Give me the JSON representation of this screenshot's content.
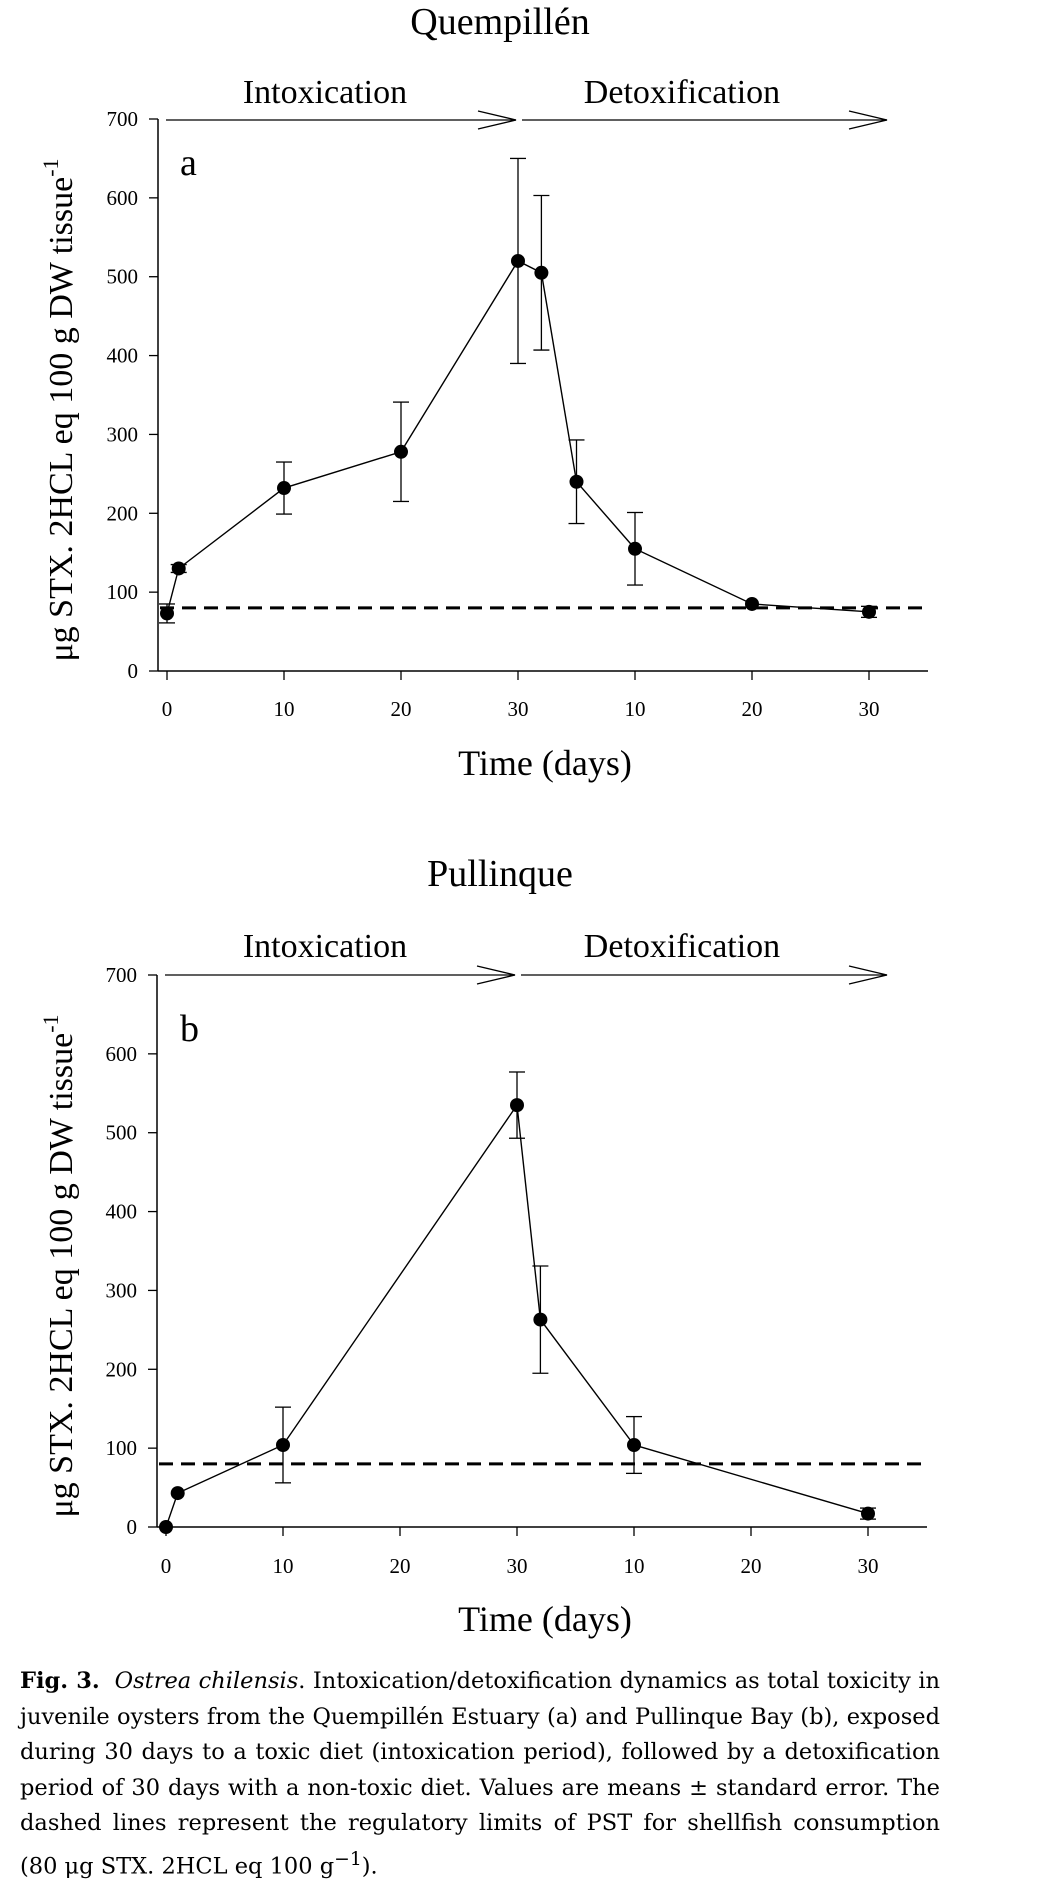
{
  "chart_data": [
    {
      "type": "line",
      "title": "Quempillén",
      "panel_label": "a",
      "phase_labels": [
        "Intoxication",
        "Detoxification"
      ],
      "xlabel": "Time (days)",
      "ylabel": "μg STX. 2HCL eq 100 g DW tissue",
      "ylabel_sup": "-1",
      "x_tick_labels": [
        "0",
        "10",
        "20",
        "30",
        "10",
        "20",
        "30"
      ],
      "y_ticks": [
        0,
        100,
        200,
        300,
        400,
        500,
        600,
        700
      ],
      "ylim": [
        0,
        700
      ],
      "threshold": 80,
      "grid": false,
      "points": [
        {
          "x": 0,
          "y": 73,
          "err": 12
        },
        {
          "x": 1,
          "y": 130,
          "err": 5
        },
        {
          "x": 10,
          "y": 232,
          "err": 33
        },
        {
          "x": 20,
          "y": 278,
          "err": 63
        },
        {
          "x": 30,
          "y": 520,
          "err": 130
        },
        {
          "x": 32,
          "y": 505,
          "err": 98
        },
        {
          "x": 35,
          "y": 240,
          "err": 53
        },
        {
          "x": 40,
          "y": 155,
          "err": 46
        },
        {
          "x": 50,
          "y": 85,
          "err": 0
        },
        {
          "x": 60,
          "y": 75,
          "err": 7
        }
      ]
    },
    {
      "type": "line",
      "title": "Pullinque",
      "panel_label": "b",
      "phase_labels": [
        "Intoxication",
        "Detoxification"
      ],
      "xlabel": "Time (days)",
      "ylabel": "μg STX. 2HCL eq 100 g DW tissue",
      "ylabel_sup": "-1",
      "x_tick_labels": [
        "0",
        "10",
        "20",
        "30",
        "10",
        "20",
        "30"
      ],
      "y_ticks": [
        0,
        100,
        200,
        300,
        400,
        500,
        600,
        700
      ],
      "ylim": [
        0,
        700
      ],
      "threshold": 80,
      "grid": false,
      "points": [
        {
          "x": 0,
          "y": 0,
          "err": 0
        },
        {
          "x": 1,
          "y": 43,
          "err": 0
        },
        {
          "x": 10,
          "y": 104,
          "err": 48
        },
        {
          "x": 30,
          "y": 535,
          "err": 42
        },
        {
          "x": 32,
          "y": 263,
          "err": 68
        },
        {
          "x": 40,
          "y": 104,
          "err": 36
        },
        {
          "x": 60,
          "y": 17,
          "err": 7
        }
      ]
    }
  ],
  "caption": {
    "fig_label": "Fig. 3.",
    "species": "Ostrea chilensis",
    "text": ". Intoxication/detoxification dynamics as total toxicity in juvenile oysters from the Quempillén Estuary (a) and Pullinque Bay (b), exposed during 30 days to a toxic diet (intoxication period), followed by a detoxification period of 30 days with a non-toxic diet. Values are means ± standard error. The dashed lines represent the regulatory limits of PST for shellfish consumption (80 μg STX. 2HCL eq 100 g",
    "sup": "−1",
    "end": ")."
  }
}
